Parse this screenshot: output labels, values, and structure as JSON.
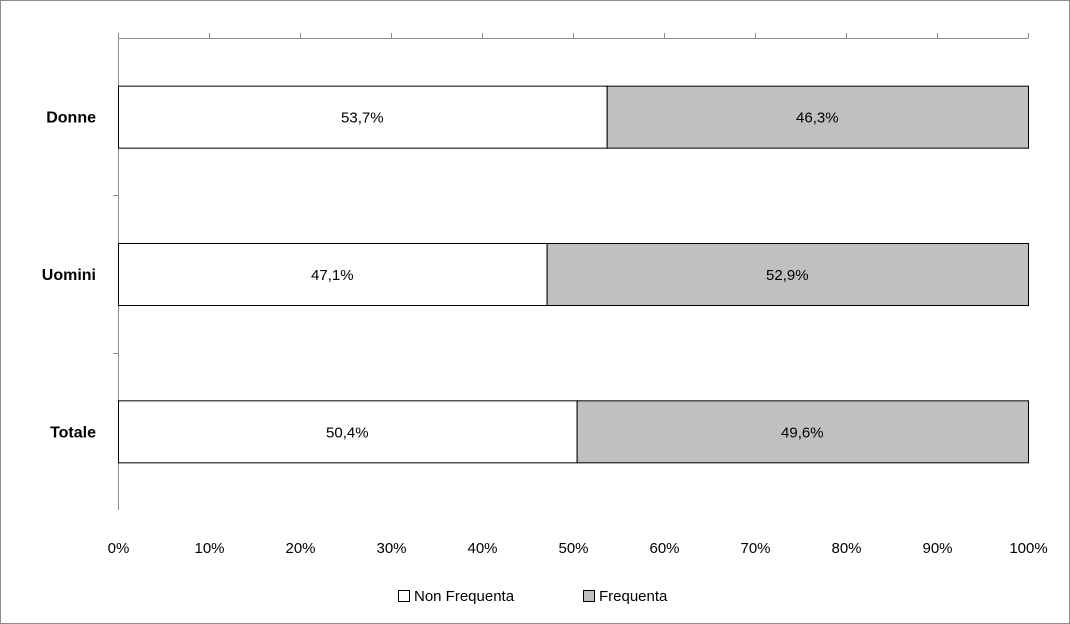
{
  "chart_data": {
    "type": "bar",
    "orientation": "horizontal",
    "stacked": true,
    "title": "",
    "categories": [
      "Donne",
      "Uomini",
      "Totale"
    ],
    "series": [
      {
        "name": "Non Frequenta",
        "values": [
          53.7,
          47.1,
          50.4
        ],
        "color": "#ffffff",
        "labels": [
          "53,7%",
          "47,1%",
          "50,4%"
        ]
      },
      {
        "name": "Frequenta",
        "values": [
          46.3,
          52.9,
          49.6
        ],
        "color": "#c0c0c0",
        "labels": [
          "46,3%",
          "52,9%",
          "49,6%"
        ]
      }
    ],
    "xlim": [
      0,
      100
    ],
    "xticks": [
      "0%",
      "10%",
      "20%",
      "30%",
      "40%",
      "50%",
      "60%",
      "70%",
      "80%",
      "90%",
      "100%"
    ],
    "xlabel": "",
    "ylabel": "",
    "grid": false,
    "legend_position": "bottom"
  }
}
